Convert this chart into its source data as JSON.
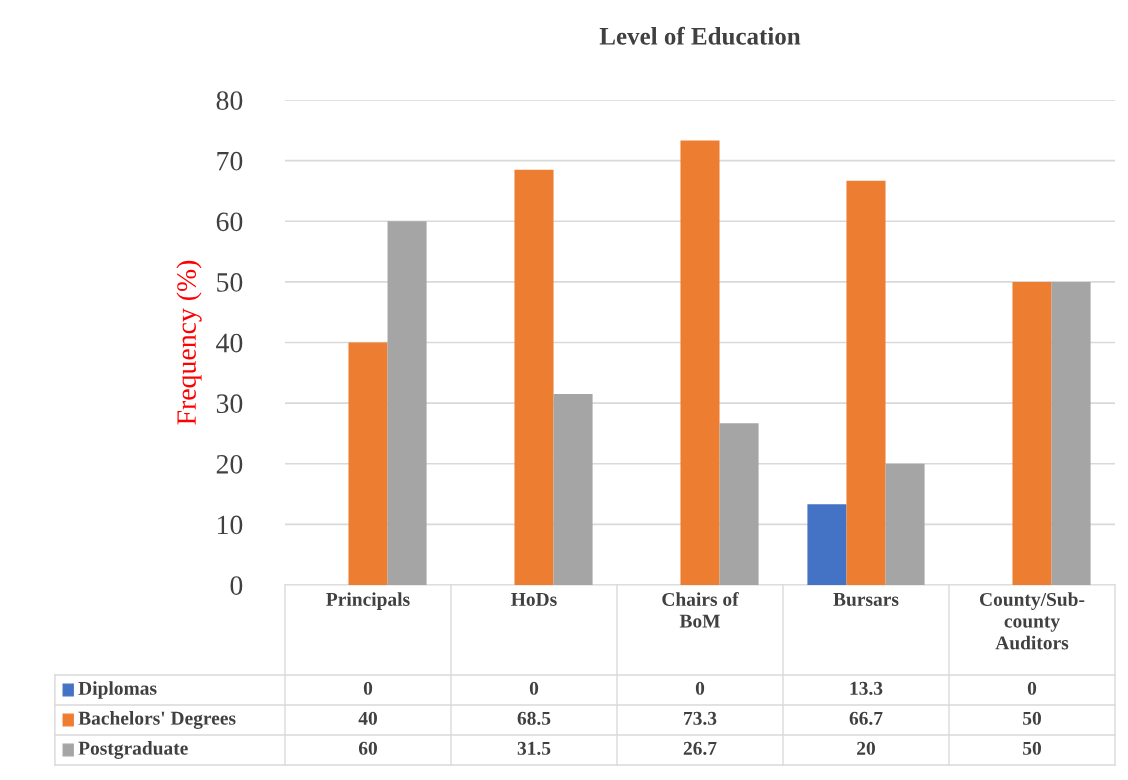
{
  "chart_data": {
    "type": "bar",
    "title": "Level of Education",
    "ylabel": "Frequency (%)",
    "categories": [
      "Principals",
      "HoDs",
      "Chairs of BoM",
      "Bursars",
      "County/Sub-county Auditors"
    ],
    "series": [
      {
        "name": "Diplomas",
        "color": "#4472c4",
        "values": [
          0,
          0,
          0,
          13.3,
          0
        ]
      },
      {
        "name": "Bachelors' Degrees",
        "color": "#ed7d31",
        "values": [
          40,
          68.5,
          73.3,
          66.7,
          50
        ]
      },
      {
        "name": "Postgraduate",
        "color": "#a5a5a5",
        "values": [
          60,
          31.5,
          26.7,
          20,
          50
        ]
      }
    ],
    "ylim": [
      0,
      80
    ],
    "yticks": [
      0,
      10,
      20,
      30,
      40,
      50,
      60,
      70,
      80
    ],
    "grid": "y",
    "legend": "bottom",
    "data_labels": true
  }
}
